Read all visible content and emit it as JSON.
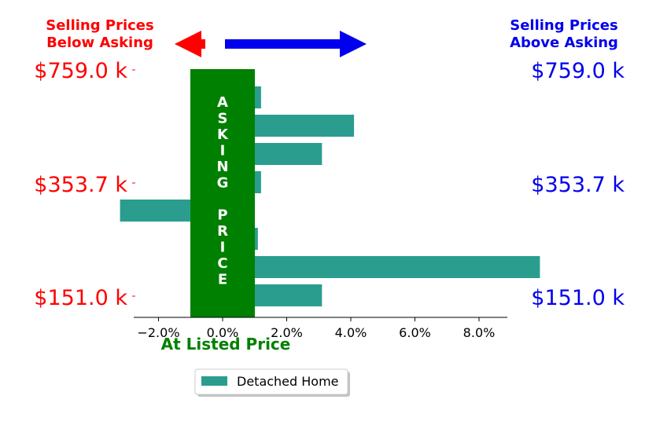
{
  "headers": {
    "left": [
      "Selling Prices",
      "Below Asking"
    ],
    "right": [
      "Selling Prices",
      "Above Asking"
    ]
  },
  "price_labels": [
    "$759.0 k",
    "$353.7 k",
    "$151.0 k"
  ],
  "band_letters": [
    "A",
    "S",
    "K",
    "I",
    "N",
    "G",
    "",
    "P",
    "R",
    "I",
    "C",
    "E"
  ],
  "xlabel": "At Listed Price",
  "colors": {
    "bar": "#2a9d8f",
    "band": "#008000",
    "left": "#ff0000",
    "right": "#0000ee"
  },
  "chart_data": {
    "type": "bar",
    "orientation": "horizontal",
    "series": [
      {
        "name": "Detached Home",
        "values": [
          0.2,
          3.1,
          2.1,
          0.2,
          -2.2,
          0.1,
          8.9,
          2.1
        ]
      }
    ],
    "xticks": [
      "−2.0%",
      "0.0%",
      "2.0%",
      "4.0%",
      "6.0%",
      "8.0%"
    ],
    "xtick_values": [
      -2,
      0,
      2,
      4,
      6,
      8
    ],
    "xlim": [
      -2.7,
      9.0
    ],
    "band_range": [
      -1,
      1
    ],
    "legend": "bottom-center"
  }
}
